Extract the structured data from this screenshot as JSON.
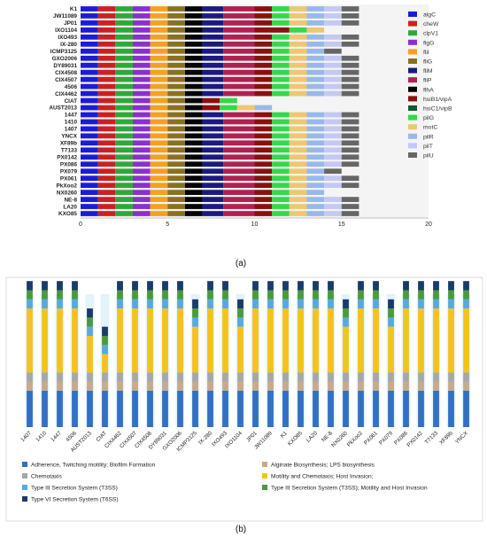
{
  "figure": {
    "panel_a_label": "(a)",
    "panel_b_label": "(b)"
  },
  "colors": {
    "algC": "#1c1cd4",
    "cheW": "#cc2020",
    "clpV1": "#2fa83a",
    "flgG": "#8a30cc",
    "fliI": "#f5a020",
    "fliG": "#8a7020",
    "fliM": "#1a1a80",
    "fliP": "#b02050",
    "flhA": "#050505",
    "hsiB1/vipA": "#8a1010",
    "hsiC1/vipB": "#0e5a2e",
    "pilG": "#33d94a",
    "motC": "#ecc870",
    "pilR": "#99b8ea",
    "pilT": "#c4c8f2",
    "pilU": "#666666"
  },
  "chart_data": [
    {
      "type": "bar",
      "orientation": "horizontal",
      "stacked": true,
      "title": "",
      "xlabel": "",
      "ylabel": "",
      "xlim": [
        0,
        20
      ],
      "xticks": [
        0,
        5,
        10,
        15,
        20
      ],
      "legend_position": "right",
      "categories": [
        "K1",
        "JW11089",
        "JP01",
        "IXO1104",
        "IXO493",
        "IX-280",
        "ICMP3125",
        "GXO2006",
        "DY89031",
        "CIX4508",
        "CIX4507",
        "4506",
        "CIX4462",
        "CIAT",
        "AUST2013",
        "1447",
        "1410",
        "1407",
        "YNCX",
        "XF89b",
        "T7133",
        "PX0142",
        "PX086",
        "PX079",
        "PX061",
        "PkXoo2",
        "NX0260",
        "NE-8",
        "LA20",
        "KXO85"
      ],
      "series_names": [
        "algC",
        "cheW",
        "clpV1",
        "flgG",
        "fliI",
        "fliG",
        "fliM",
        "fliP",
        "flhA",
        "hsiB1/vipA",
        "hsiC1/vipB",
        "pilG",
        "motC",
        "pilR",
        "pilT",
        "pilU"
      ],
      "segment_order": [
        "algC",
        "cheW",
        "clpV1",
        "flgG",
        "fliI",
        "fliG",
        "flhA",
        "fliM",
        "fliP",
        "hsiB1/vipA",
        "pilG",
        "motC",
        "pilR",
        "pilT",
        "pilU"
      ],
      "unit_widths": {
        "flhA": 1,
        "fliM": 1.2,
        "fliP": 1.8
      },
      "counts": {
        "K1": {
          "missing": []
        },
        "JW11089": {
          "missing": []
        },
        "JP01": {
          "missing": []
        },
        "IXO1104": {
          "missing": [
            "pilR",
            "pilT",
            "pilU"
          ],
          "extra": [
            [
              "hsiB1/vipA",
              2
            ],
            [
              "pilG",
              1
            ],
            [
              "motC",
              1
            ]
          ]
        },
        "IXO493": {
          "missing": []
        },
        "IX-280": {
          "missing": []
        },
        "ICMP3125": {
          "missing": [
            "pilT"
          ]
        },
        "GXO2006": {
          "missing": []
        },
        "DY89031": {
          "missing": []
        },
        "CIX4508": {
          "missing": []
        },
        "CIX4507": {
          "missing": []
        },
        "4506": {
          "missing": []
        },
        "CIX4462": {
          "missing": []
        },
        "CIAT": {
          "missing": [
            "fliM",
            "fliP",
            "motC",
            "pilR",
            "pilT",
            "pilU"
          ]
        },
        "AUST2013": {
          "missing": [
            "fliM",
            "fliP",
            "pilT",
            "pilU"
          ]
        },
        "1447": {
          "missing": []
        },
        "1410": {
          "missing": []
        },
        "1407": {
          "missing": []
        },
        "YNCX": {
          "missing": []
        },
        "XF89b": {
          "missing": []
        },
        "T7133": {
          "missing": []
        },
        "PX0142": {
          "missing": []
        },
        "PX086": {
          "missing": []
        },
        "PX079": {
          "missing": [
            "pilT"
          ]
        },
        "PX061": {
          "missing": []
        },
        "PkXoo2": {
          "missing": []
        },
        "NX0260": {
          "missing": [
            "pilT",
            "pilU"
          ]
        },
        "NE-8": {
          "missing": []
        },
        "LA20": {
          "missing": []
        },
        "KXO85": {
          "missing": []
        }
      }
    },
    {
      "type": "bar",
      "orientation": "vertical",
      "stacked": true,
      "title": "",
      "xlabel": "",
      "ylabel": "",
      "legend_position": "bottom",
      "categories": [
        "1407",
        "1410",
        "1447",
        "4506",
        "AUST2013",
        "CIAT",
        "CIX4462",
        "CIX4507",
        "CIX4508",
        "DY89031",
        "GXO2006",
        "ICMP3125",
        "IX-280",
        "IXO493",
        "IXO1104",
        "JP01",
        "JW11089",
        "K1",
        "KXO85",
        "LA20",
        "NE-8",
        "NX0260",
        "PkXoo2",
        "PX061",
        "PX079",
        "PX086",
        "PX0142",
        "T7133",
        "XF89b",
        "YNCX"
      ],
      "series": [
        {
          "name": "Adherence, Twitching motility; Biofilm Formation",
          "color": "#3370c4",
          "values": [
            4,
            4,
            4,
            4,
            4,
            4,
            4,
            4,
            4,
            4,
            4,
            4,
            4,
            4,
            4,
            4,
            4,
            4,
            4,
            4,
            4,
            4,
            4,
            4,
            4,
            4,
            4,
            4,
            4,
            4
          ]
        },
        {
          "name": "Alginate Biosynthesis; LPS biosynthesis",
          "color": "#c9a98a",
          "values": [
            1,
            1,
            1,
            1,
            1,
            1,
            1,
            1,
            1,
            1,
            1,
            1,
            1,
            1,
            1,
            1,
            1,
            1,
            1,
            1,
            1,
            1,
            1,
            1,
            1,
            1,
            1,
            1,
            1,
            1
          ]
        },
        {
          "name": "Chemotaxis",
          "color": "#a7a7a7",
          "values": [
            1,
            1,
            1,
            1,
            1,
            1,
            1,
            1,
            1,
            1,
            1,
            1,
            1,
            1,
            1,
            1,
            1,
            1,
            1,
            1,
            1,
            1,
            1,
            1,
            1,
            1,
            1,
            1,
            1,
            1
          ]
        },
        {
          "name": "Motility and Chemotaxis; Host Invasion;",
          "color": "#f4c21d",
          "values": [
            7,
            7,
            7,
            7,
            4,
            2,
            7,
            7,
            7,
            7,
            7,
            5,
            7,
            7,
            5,
            7,
            7,
            7,
            7,
            7,
            7,
            5,
            7,
            7,
            5,
            7,
            7,
            7,
            7,
            7
          ]
        },
        {
          "name": "Type III Secretion System (T3SS)",
          "color": "#58a8e0",
          "values": [
            1,
            1,
            1,
            1,
            1,
            1,
            1,
            1,
            1,
            1,
            1,
            1,
            1,
            1,
            1,
            1,
            1,
            1,
            1,
            1,
            1,
            1,
            1,
            1,
            1,
            1,
            1,
            1,
            1,
            1
          ]
        },
        {
          "name": "Type III Secretion System (T3SS); Motility and Host Invasion",
          "color": "#4a9a3c",
          "values": [
            1,
            1,
            1,
            1,
            1,
            1,
            1,
            1,
            1,
            1,
            1,
            1,
            1,
            1,
            1,
            1,
            1,
            1,
            1,
            1,
            1,
            1,
            1,
            1,
            1,
            1,
            1,
            1,
            1,
            1
          ]
        },
        {
          "name": "Type VI Secretion System (T6SS)",
          "color": "#1a3a6a",
          "values": [
            1,
            1,
            1,
            1,
            1,
            1,
            1,
            1,
            1,
            1,
            1,
            1,
            1,
            1,
            1,
            1,
            1,
            1,
            1,
            1,
            1,
            1,
            1,
            1,
            1,
            1,
            1,
            1,
            1,
            1
          ]
        }
      ]
    }
  ]
}
